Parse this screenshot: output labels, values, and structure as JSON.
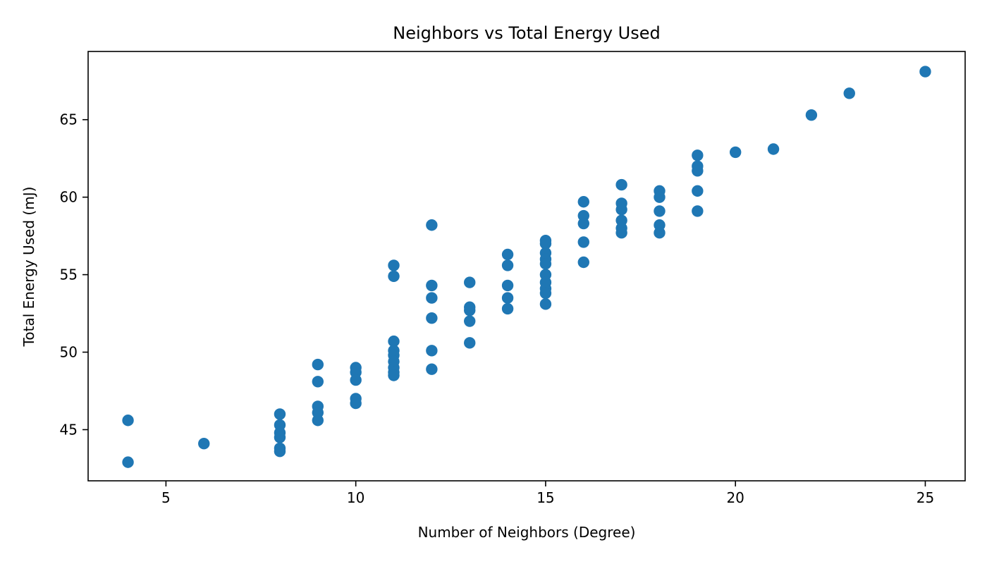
{
  "chart_data": {
    "type": "scatter",
    "title": "Neighbors vs Total Energy Used",
    "xlabel": "Number of Neighbors (Degree)",
    "ylabel": "Total Energy Used (mJ)",
    "xlim": [
      2.95,
      26.05
    ],
    "ylim": [
      41.7,
      69.4
    ],
    "xticks": [
      5,
      10,
      15,
      20,
      25
    ],
    "yticks": [
      45,
      50,
      55,
      60,
      65
    ],
    "grid": false,
    "color": "#1f77b4",
    "series": [
      {
        "points": [
          [
            4,
            45.6
          ],
          [
            4,
            42.9
          ],
          [
            6,
            44.1
          ],
          [
            8,
            46.0
          ],
          [
            8,
            45.3
          ],
          [
            8,
            44.8
          ],
          [
            8,
            44.5
          ],
          [
            8,
            43.8
          ],
          [
            8,
            43.6
          ],
          [
            9,
            49.2
          ],
          [
            9,
            48.1
          ],
          [
            9,
            46.5
          ],
          [
            9,
            46.1
          ],
          [
            9,
            45.6
          ],
          [
            10,
            49.0
          ],
          [
            10,
            48.7
          ],
          [
            10,
            48.2
          ],
          [
            10,
            47.0
          ],
          [
            10,
            46.7
          ],
          [
            11,
            55.6
          ],
          [
            11,
            54.9
          ],
          [
            11,
            50.7
          ],
          [
            11,
            50.1
          ],
          [
            11,
            49.8
          ],
          [
            11,
            49.4
          ],
          [
            11,
            49.0
          ],
          [
            11,
            48.7
          ],
          [
            11,
            48.5
          ],
          [
            12,
            58.2
          ],
          [
            12,
            54.3
          ],
          [
            12,
            53.5
          ],
          [
            12,
            52.2
          ],
          [
            12,
            50.1
          ],
          [
            12,
            48.9
          ],
          [
            13,
            54.5
          ],
          [
            13,
            52.9
          ],
          [
            13,
            52.7
          ],
          [
            13,
            52.0
          ],
          [
            13,
            50.6
          ],
          [
            14,
            56.3
          ],
          [
            14,
            55.6
          ],
          [
            14,
            54.3
          ],
          [
            14,
            53.5
          ],
          [
            14,
            52.8
          ],
          [
            15,
            57.2
          ],
          [
            15,
            57.0
          ],
          [
            15,
            56.4
          ],
          [
            15,
            56.0
          ],
          [
            15,
            55.7
          ],
          [
            15,
            55.0
          ],
          [
            15,
            54.5
          ],
          [
            15,
            54.1
          ],
          [
            15,
            53.8
          ],
          [
            15,
            53.1
          ],
          [
            16,
            59.7
          ],
          [
            16,
            58.8
          ],
          [
            16,
            58.3
          ],
          [
            16,
            57.1
          ],
          [
            16,
            55.8
          ],
          [
            17,
            60.8
          ],
          [
            17,
            59.6
          ],
          [
            17,
            59.2
          ],
          [
            17,
            58.5
          ],
          [
            17,
            58.0
          ],
          [
            17,
            57.7
          ],
          [
            18,
            60.4
          ],
          [
            18,
            60.0
          ],
          [
            18,
            59.1
          ],
          [
            18,
            58.2
          ],
          [
            18,
            57.7
          ],
          [
            19,
            62.7
          ],
          [
            19,
            62.0
          ],
          [
            19,
            61.7
          ],
          [
            19,
            60.4
          ],
          [
            19,
            59.1
          ],
          [
            20,
            62.9
          ],
          [
            21,
            63.1
          ],
          [
            22,
            65.3
          ],
          [
            23,
            66.7
          ],
          [
            25,
            68.1
          ]
        ]
      }
    ]
  }
}
